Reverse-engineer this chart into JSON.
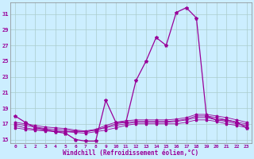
{
  "title": "",
  "xlabel": "Windchill (Refroidissement éolien,°C)",
  "background_color": "#cceeff",
  "line_color": "#990099",
  "grid_color": "#aacccc",
  "hours": [
    0,
    1,
    2,
    3,
    4,
    5,
    6,
    7,
    8,
    9,
    10,
    11,
    12,
    13,
    14,
    15,
    16,
    17,
    18,
    19,
    20,
    21,
    22,
    23
  ],
  "main_values": [
    18.0,
    17.2,
    16.5,
    16.3,
    16.0,
    15.8,
    15.0,
    14.8,
    14.8,
    20.0,
    17.2,
    17.2,
    22.5,
    25.0,
    28.0,
    27.0,
    31.2,
    31.8,
    30.5,
    18.0,
    17.5,
    17.5,
    17.2,
    16.5
  ],
  "flat_lines": [
    [
      16.5,
      16.3,
      16.2,
      16.1,
      16.0,
      16.0,
      15.9,
      15.8,
      16.0,
      16.2,
      16.5,
      16.8,
      17.0,
      17.0,
      17.0,
      17.0,
      17.0,
      17.2,
      17.5,
      17.5,
      17.3,
      17.0,
      16.8,
      16.5
    ],
    [
      16.8,
      16.5,
      16.3,
      16.2,
      16.1,
      16.0,
      16.0,
      16.0,
      16.2,
      16.5,
      16.8,
      17.0,
      17.2,
      17.2,
      17.2,
      17.2,
      17.3,
      17.5,
      17.8,
      17.8,
      17.5,
      17.3,
      17.0,
      16.8
    ],
    [
      17.0,
      16.8,
      16.6,
      16.4,
      16.3,
      16.2,
      16.1,
      16.0,
      16.2,
      16.6,
      17.0,
      17.2,
      17.3,
      17.3,
      17.3,
      17.3,
      17.4,
      17.6,
      18.0,
      18.0,
      17.8,
      17.5,
      17.2,
      17.0
    ],
    [
      17.2,
      17.0,
      16.8,
      16.6,
      16.5,
      16.4,
      16.2,
      16.1,
      16.3,
      16.8,
      17.2,
      17.4,
      17.5,
      17.5,
      17.5,
      17.5,
      17.6,
      17.8,
      18.2,
      18.2,
      18.0,
      17.8,
      17.5,
      17.2
    ]
  ],
  "ylim": [
    14.5,
    32.5
  ],
  "xlim": [
    -0.5,
    23.5
  ],
  "yticks": [
    15,
    17,
    19,
    21,
    23,
    25,
    27,
    29,
    31
  ],
  "xticks": [
    0,
    1,
    2,
    3,
    4,
    5,
    6,
    7,
    8,
    9,
    10,
    11,
    12,
    13,
    14,
    15,
    16,
    17,
    18,
    19,
    20,
    21,
    22,
    23
  ]
}
